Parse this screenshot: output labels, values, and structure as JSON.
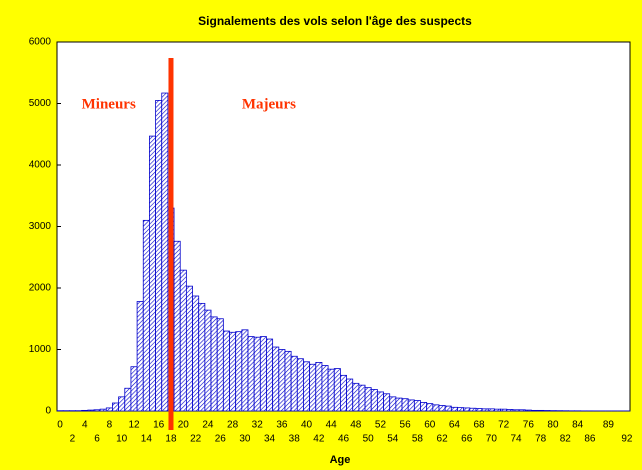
{
  "chart_data": {
    "type": "histogram",
    "title": "Signalements des vols selon l'âge des suspects",
    "xlabel": "Age",
    "categories": [
      "0",
      null,
      "2",
      null,
      "4",
      null,
      "6",
      null,
      "8",
      null,
      "10",
      null,
      "12",
      null,
      "14",
      null,
      "16",
      null,
      "18",
      null,
      "20",
      null,
      "22",
      null,
      "24",
      null,
      "26",
      null,
      "28",
      null,
      "30",
      null,
      "32",
      null,
      "34",
      null,
      "36",
      null,
      "38",
      null,
      "40",
      null,
      "42",
      null,
      "44",
      null,
      "46",
      null,
      "48",
      null,
      "50",
      null,
      "52",
      null,
      "54",
      null,
      "56",
      null,
      "58",
      null,
      "60",
      null,
      "62",
      null,
      "64",
      null,
      "66",
      null,
      "68",
      null,
      "70",
      null,
      "72",
      null,
      "74",
      null,
      "76",
      null,
      "78",
      null,
      "80",
      null,
      "82",
      null,
      "84",
      null,
      "86",
      null,
      null,
      "89",
      null,
      null,
      "92"
    ],
    "values": [
      5,
      5,
      5,
      5,
      10,
      15,
      20,
      30,
      50,
      130,
      230,
      370,
      720,
      1780,
      3100,
      4470,
      5050,
      5170,
      3300,
      2760,
      2290,
      2030,
      1870,
      1750,
      1640,
      1530,
      1500,
      1300,
      1280,
      1290,
      1320,
      1210,
      1200,
      1210,
      1170,
      1040,
      1000,
      970,
      890,
      850,
      800,
      760,
      790,
      740,
      680,
      690,
      580,
      520,
      450,
      420,
      380,
      350,
      310,
      280,
      230,
      210,
      200,
      180,
      170,
      140,
      120,
      100,
      90,
      80,
      60,
      55,
      50,
      45,
      40,
      35,
      35,
      30,
      30,
      25,
      20,
      20,
      15,
      10,
      10,
      8,
      6,
      5,
      4,
      3,
      3,
      2,
      2,
      1,
      1,
      1,
      1,
      1,
      1
    ],
    "color": "#0000cc",
    "ylim": [
      0,
      6000
    ],
    "yticks": [
      0,
      1000,
      2000,
      3000,
      4000,
      5000,
      6000
    ],
    "reference_line": {
      "x": 18,
      "color": "#ff3300"
    },
    "annotations": [
      {
        "text": "Mineurs",
        "x": 4
      },
      {
        "text": "Majeurs",
        "x": 30
      }
    ],
    "grid": false
  }
}
